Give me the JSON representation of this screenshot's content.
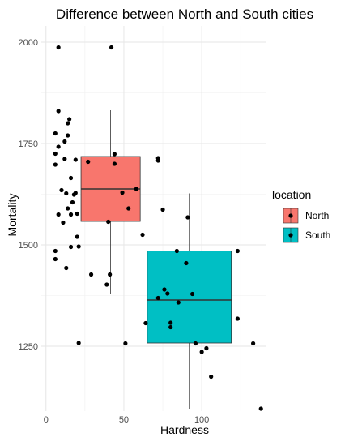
{
  "chart_data": {
    "type": "scatter",
    "title": "Difference between North and South cities",
    "xlabel": "Hardness",
    "ylabel": "Mortality",
    "xlim": [
      -3,
      141
    ],
    "ylim": [
      1090,
      2040
    ],
    "x_ticks": [
      0,
      50,
      100
    ],
    "y_ticks": [
      1250,
      1500,
      1750,
      2000
    ],
    "grid": true,
    "legend": {
      "title": "location",
      "position": "right",
      "entries": [
        {
          "name": "North",
          "color": "#F8766D"
        },
        {
          "name": "South",
          "color": "#00BFC4"
        }
      ]
    },
    "boxplots": [
      {
        "name": "North",
        "color": "#F8766D",
        "x_min": 22.5,
        "x_max": 60.5,
        "center_x": 41.5,
        "q1": 1558,
        "median": 1638,
        "q3": 1718,
        "whisker_low": 1378,
        "whisker_high": 1832
      },
      {
        "name": "South",
        "color": "#00BFC4",
        "x_min": 65,
        "x_max": 119,
        "center_x": 92,
        "q1": 1258,
        "median": 1364,
        "q3": 1485,
        "whisker_low": 1096,
        "whisker_high": 1627
      }
    ],
    "points": [
      [
        8,
        1987
      ],
      [
        42,
        1987
      ],
      [
        8,
        1830
      ],
      [
        15,
        1810
      ],
      [
        14,
        1800
      ],
      [
        6,
        1775
      ],
      [
        14,
        1770
      ],
      [
        12,
        1755
      ],
      [
        8,
        1742
      ],
      [
        6,
        1725
      ],
      [
        16,
        1665
      ],
      [
        6,
        1698
      ],
      [
        12,
        1712
      ],
      [
        19,
        1710
      ],
      [
        27,
        1705
      ],
      [
        44,
        1724
      ],
      [
        44,
        1700
      ],
      [
        72,
        1714
      ],
      [
        72,
        1708
      ],
      [
        10,
        1635
      ],
      [
        13,
        1627
      ],
      [
        18,
        1624
      ],
      [
        8,
        1575
      ],
      [
        11,
        1555
      ],
      [
        14,
        1590
      ],
      [
        16,
        1575
      ],
      [
        17,
        1605
      ],
      [
        19,
        1628
      ],
      [
        20,
        1577
      ],
      [
        20,
        1520
      ],
      [
        49,
        1629
      ],
      [
        58,
        1638
      ],
      [
        53,
        1590
      ],
      [
        40,
        1557
      ],
      [
        62,
        1525
      ],
      [
        75,
        1587
      ],
      [
        91,
        1568
      ],
      [
        6,
        1485
      ],
      [
        6,
        1465
      ],
      [
        16,
        1495
      ],
      [
        21,
        1496
      ],
      [
        13,
        1443
      ],
      [
        29,
        1427
      ],
      [
        39,
        1402
      ],
      [
        41,
        1427
      ],
      [
        84,
        1485
      ],
      [
        90,
        1455
      ],
      [
        123,
        1485
      ],
      [
        78,
        1380
      ],
      [
        76,
        1390
      ],
      [
        72,
        1369
      ],
      [
        85,
        1358
      ],
      [
        94,
        1379
      ],
      [
        64,
        1307
      ],
      [
        80,
        1308
      ],
      [
        80,
        1297
      ],
      [
        123,
        1318
      ],
      [
        96,
        1257
      ],
      [
        100,
        1236
      ],
      [
        103,
        1245
      ],
      [
        21,
        1258
      ],
      [
        51,
        1257
      ],
      [
        133,
        1257
      ],
      [
        106,
        1175
      ],
      [
        138,
        1096
      ]
    ]
  }
}
